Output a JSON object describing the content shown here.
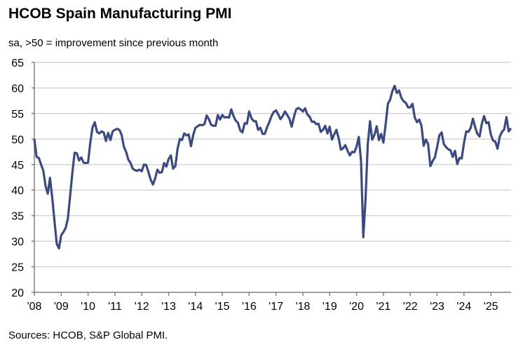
{
  "title": "HCOB Spain Manufacturing PMI",
  "subtitle": "sa, >50 = improvement since previous month",
  "source": "Sources: HCOB, S&P Global PMI.",
  "chart_data": {
    "type": "line",
    "title": "HCOB Spain Manufacturing PMI",
    "subtitle": "sa, >50 = improvement since previous month",
    "xlabel": "",
    "ylabel": "",
    "ylim": [
      20,
      65
    ],
    "yticks": [
      20,
      25,
      30,
      35,
      40,
      45,
      50,
      55,
      60,
      65
    ],
    "xticks": [
      "'08",
      "'09",
      "'10",
      "'11",
      "'12",
      "'13",
      "'14",
      "'15",
      "'16",
      "'17",
      "'18",
      "'19",
      "'20",
      "'21",
      "'22",
      "'23",
      "'24",
      "'25"
    ],
    "grid": "horizontal",
    "line_color": "#3b4a7f",
    "start": "2008-01",
    "frequency": "monthly",
    "series": [
      {
        "values": [
          50.0,
          46.5,
          46.3,
          45.0,
          43.8,
          40.8,
          39.3,
          42.4,
          38.5,
          34.0,
          29.5,
          28.6,
          31.2,
          31.8,
          32.6,
          34.5,
          39.0,
          43.5,
          47.3,
          47.2,
          45.8,
          46.4,
          45.4,
          45.3,
          45.4,
          49.3,
          52.3,
          53.3,
          51.4,
          51.1,
          51.5,
          51.3,
          49.6,
          51.2,
          49.8,
          51.5,
          51.8,
          52.0,
          51.8,
          50.8,
          48.5,
          47.5,
          46.0,
          45.3,
          44.2,
          43.9,
          43.8,
          44.0,
          43.7,
          45.0,
          44.9,
          43.5,
          42.0,
          41.1,
          42.3,
          44.0,
          43.4,
          43.5,
          45.3,
          44.6,
          46.1,
          46.8,
          44.2,
          44.7,
          48.1,
          50.0,
          49.8,
          51.1,
          50.7,
          50.9,
          48.6,
          50.8,
          52.2,
          52.5,
          52.8,
          52.7,
          52.9,
          54.6,
          53.9,
          52.8,
          52.6,
          52.6,
          54.7,
          53.8,
          54.7,
          54.2,
          54.3,
          54.2,
          55.8,
          54.5,
          53.6,
          53.2,
          51.7,
          51.3,
          53.1,
          53.0,
          55.4,
          54.1,
          53.5,
          53.5,
          51.8,
          52.2,
          51.0,
          51.0,
          52.3,
          53.3,
          54.5,
          55.3,
          55.6,
          54.8,
          53.9,
          54.5,
          55.4,
          54.7,
          54.0,
          52.4,
          54.3,
          55.8,
          56.1,
          55.8,
          55.4,
          56.0,
          54.8,
          54.4,
          53.4,
          53.4,
          52.9,
          53.0,
          51.4,
          51.8,
          52.6,
          51.1,
          52.4,
          49.9,
          50.9,
          51.8,
          50.1,
          47.9,
          48.2,
          48.8,
          47.7,
          46.8,
          47.5,
          47.4,
          48.5,
          50.4,
          45.7,
          30.8,
          38.3,
          49.0,
          53.5,
          49.9,
          50.8,
          52.5,
          49.8,
          51.0,
          49.3,
          52.9,
          56.9,
          57.7,
          59.4,
          60.4,
          59.0,
          59.5,
          58.1,
          57.4,
          57.1,
          56.2,
          56.2,
          56.9,
          54.2,
          53.3,
          53.8,
          52.6,
          48.7,
          49.9,
          49.0,
          44.7,
          45.7,
          46.4,
          48.4,
          50.7,
          51.3,
          49.0,
          48.4,
          48.0,
          47.8,
          46.5,
          47.7,
          45.1,
          46.3,
          46.2,
          49.2,
          51.5,
          51.4,
          52.2,
          54.0,
          52.3,
          51.0,
          50.5,
          53.0,
          54.5,
          53.1,
          53.3,
          50.9,
          49.7,
          49.5,
          48.1,
          50.5,
          51.4,
          51.9,
          54.3,
          51.5,
          52.1
        ]
      }
    ]
  }
}
